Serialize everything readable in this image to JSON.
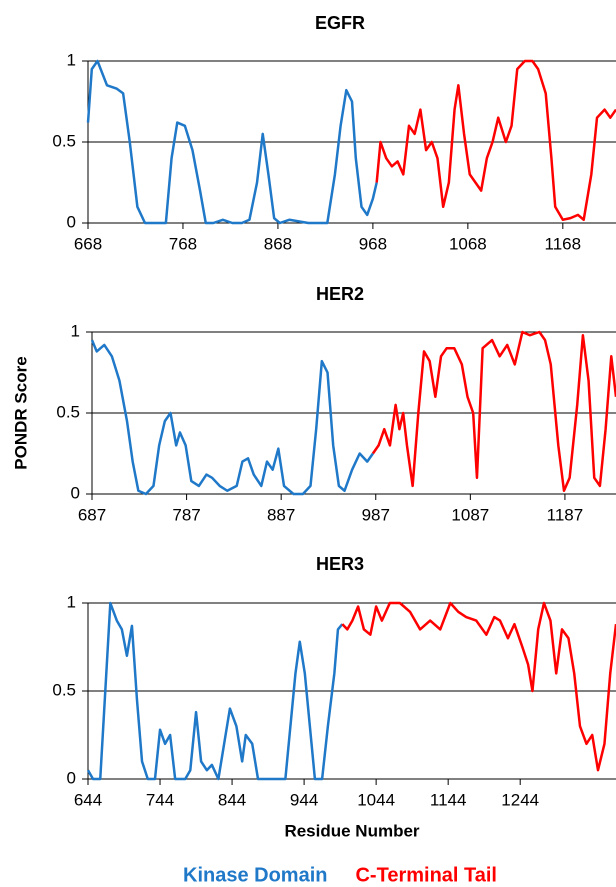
{
  "chart_data": [
    {
      "type": "line",
      "title": "EGFR",
      "xlim": [
        668,
        1224
      ],
      "xticks": [
        668,
        768,
        868,
        968,
        1068,
        1168
      ],
      "ylim": [
        0,
        1
      ],
      "yticks": [
        0,
        0.5,
        1
      ],
      "grid": true,
      "series": [
        {
          "color": "#1f78c8",
          "x": [
            668,
            672,
            678,
            688,
            698,
            705,
            712,
            720,
            728,
            740,
            750,
            756,
            762,
            770,
            778,
            786,
            792,
            800,
            810,
            820,
            830,
            838,
            846,
            852,
            858,
            864,
            870,
            880,
            890,
            900,
            912,
            920,
            928,
            934,
            940,
            946,
            950,
            956,
            962,
            968,
            972
          ],
          "values": [
            0.62,
            0.95,
            1.0,
            0.85,
            0.83,
            0.8,
            0.5,
            0.1,
            0.0,
            0.0,
            0.0,
            0.4,
            0.62,
            0.6,
            0.45,
            0.2,
            0.0,
            0.0,
            0.02,
            0.0,
            0.0,
            0.02,
            0.25,
            0.55,
            0.3,
            0.03,
            0.0,
            0.02,
            0.01,
            0.0,
            0.0,
            0.0,
            0.3,
            0.6,
            0.82,
            0.75,
            0.4,
            0.1,
            0.05,
            0.15,
            0.25
          ]
        },
        {
          "color": "#ff0000",
          "x": [
            972,
            976,
            982,
            988,
            994,
            1000,
            1006,
            1012,
            1018,
            1024,
            1030,
            1036,
            1042,
            1048,
            1054,
            1058,
            1064,
            1070,
            1076,
            1082,
            1088,
            1094,
            1100,
            1108,
            1114,
            1120,
            1128,
            1136,
            1142,
            1150,
            1156,
            1160,
            1168,
            1176,
            1184,
            1190,
            1198,
            1204,
            1212,
            1218,
            1224
          ],
          "values": [
            0.25,
            0.5,
            0.4,
            0.35,
            0.38,
            0.3,
            0.6,
            0.55,
            0.7,
            0.45,
            0.5,
            0.4,
            0.1,
            0.25,
            0.7,
            0.85,
            0.55,
            0.3,
            0.25,
            0.2,
            0.4,
            0.5,
            0.65,
            0.5,
            0.6,
            0.95,
            1.0,
            1.0,
            0.95,
            0.8,
            0.4,
            0.1,
            0.02,
            0.03,
            0.05,
            0.02,
            0.3,
            0.65,
            0.7,
            0.65,
            0.7
          ]
        }
      ]
    },
    {
      "type": "line",
      "title": "HER2",
      "ylabel": "PONDR Score",
      "xlim": [
        687,
        1241
      ],
      "xticks": [
        687,
        787,
        887,
        987,
        1087,
        1187
      ],
      "ylim": [
        0,
        1
      ],
      "yticks": [
        0,
        0.5,
        1
      ],
      "grid": true,
      "series": [
        {
          "color": "#1f78c8",
          "x": [
            687,
            692,
            700,
            708,
            716,
            724,
            730,
            736,
            744,
            752,
            758,
            764,
            770,
            776,
            780,
            786,
            792,
            800,
            808,
            814,
            822,
            830,
            840,
            846,
            852,
            858,
            866,
            872,
            878,
            884,
            890,
            900,
            910,
            918,
            924,
            930,
            936,
            942,
            948,
            954,
            962,
            970,
            978,
            984
          ],
          "values": [
            0.95,
            0.88,
            0.92,
            0.85,
            0.7,
            0.45,
            0.2,
            0.02,
            0.0,
            0.05,
            0.3,
            0.45,
            0.5,
            0.3,
            0.38,
            0.3,
            0.08,
            0.05,
            0.12,
            0.1,
            0.05,
            0.02,
            0.05,
            0.2,
            0.22,
            0.12,
            0.05,
            0.2,
            0.15,
            0.28,
            0.05,
            0.0,
            0.0,
            0.05,
            0.4,
            0.82,
            0.75,
            0.3,
            0.05,
            0.02,
            0.15,
            0.25,
            0.2,
            0.25
          ]
        },
        {
          "color": "#ff0000",
          "x": [
            984,
            990,
            996,
            1002,
            1008,
            1012,
            1016,
            1020,
            1026,
            1032,
            1038,
            1044,
            1050,
            1056,
            1062,
            1070,
            1078,
            1084,
            1090,
            1094,
            1100,
            1110,
            1118,
            1126,
            1134,
            1142,
            1150,
            1160,
            1166,
            1172,
            1180,
            1186,
            1192,
            1200,
            1206,
            1212,
            1218,
            1224,
            1230,
            1236,
            1241
          ],
          "values": [
            0.25,
            0.3,
            0.4,
            0.3,
            0.55,
            0.4,
            0.5,
            0.3,
            0.05,
            0.5,
            0.88,
            0.82,
            0.6,
            0.85,
            0.9,
            0.9,
            0.8,
            0.6,
            0.5,
            0.1,
            0.9,
            0.95,
            0.85,
            0.92,
            0.8,
            1.0,
            0.98,
            1.0,
            0.95,
            0.8,
            0.3,
            0.02,
            0.1,
            0.55,
            0.98,
            0.7,
            0.1,
            0.05,
            0.4,
            0.85,
            0.6
          ]
        }
      ]
    },
    {
      "type": "line",
      "title": "HER3",
      "xlabel": "Residue Number",
      "xlim": [
        644,
        1377
      ],
      "xticks": [
        644,
        744,
        844,
        944,
        1044,
        1144,
        1244
      ],
      "ylim": [
        0,
        1
      ],
      "yticks": [
        0,
        0.5,
        1
      ],
      "grid": true,
      "series": [
        {
          "name": "Kinase Domain",
          "color": "#1f78c8",
          "x": [
            644,
            651,
            661,
            668,
            675,
            684,
            691,
            698,
            705,
            712,
            719,
            727,
            737,
            744,
            751,
            758,
            765,
            779,
            786,
            794,
            801,
            809,
            816,
            825,
            833,
            841,
            850,
            858,
            863,
            872,
            880,
            897,
            918,
            925,
            932,
            938,
            945,
            952,
            959,
            969,
            977,
            986,
            991,
            997
          ],
          "values": [
            0.05,
            0.0,
            0.0,
            0.5,
            1.0,
            0.9,
            0.85,
            0.7,
            0.87,
            0.45,
            0.1,
            0.0,
            0.0,
            0.28,
            0.2,
            0.25,
            0.0,
            0.0,
            0.05,
            0.38,
            0.1,
            0.05,
            0.08,
            0.0,
            0.2,
            0.4,
            0.3,
            0.1,
            0.25,
            0.2,
            0.0,
            0.0,
            0.0,
            0.3,
            0.6,
            0.78,
            0.6,
            0.3,
            0.0,
            0.0,
            0.3,
            0.6,
            0.85,
            0.88
          ]
        },
        {
          "name": "C-Terminal Tail",
          "color": "#ff0000",
          "x": [
            997,
            1004,
            1011,
            1019,
            1027,
            1036,
            1044,
            1052,
            1063,
            1077,
            1091,
            1105,
            1119,
            1133,
            1147,
            1158,
            1169,
            1183,
            1197,
            1208,
            1216,
            1227,
            1236,
            1247,
            1255,
            1261,
            1269,
            1277,
            1286,
            1294,
            1302,
            1311,
            1319,
            1327,
            1336,
            1344,
            1352,
            1361,
            1369,
            1377
          ],
          "values": [
            0.88,
            0.85,
            0.9,
            0.98,
            0.85,
            0.82,
            0.98,
            0.9,
            1.0,
            1.0,
            0.95,
            0.85,
            0.9,
            0.85,
            1.0,
            0.95,
            0.92,
            0.9,
            0.82,
            0.92,
            0.9,
            0.8,
            0.88,
            0.75,
            0.65,
            0.5,
            0.85,
            1.0,
            0.9,
            0.6,
            0.85,
            0.8,
            0.6,
            0.3,
            0.2,
            0.25,
            0.05,
            0.2,
            0.6,
            0.88
          ]
        }
      ]
    }
  ]
}
